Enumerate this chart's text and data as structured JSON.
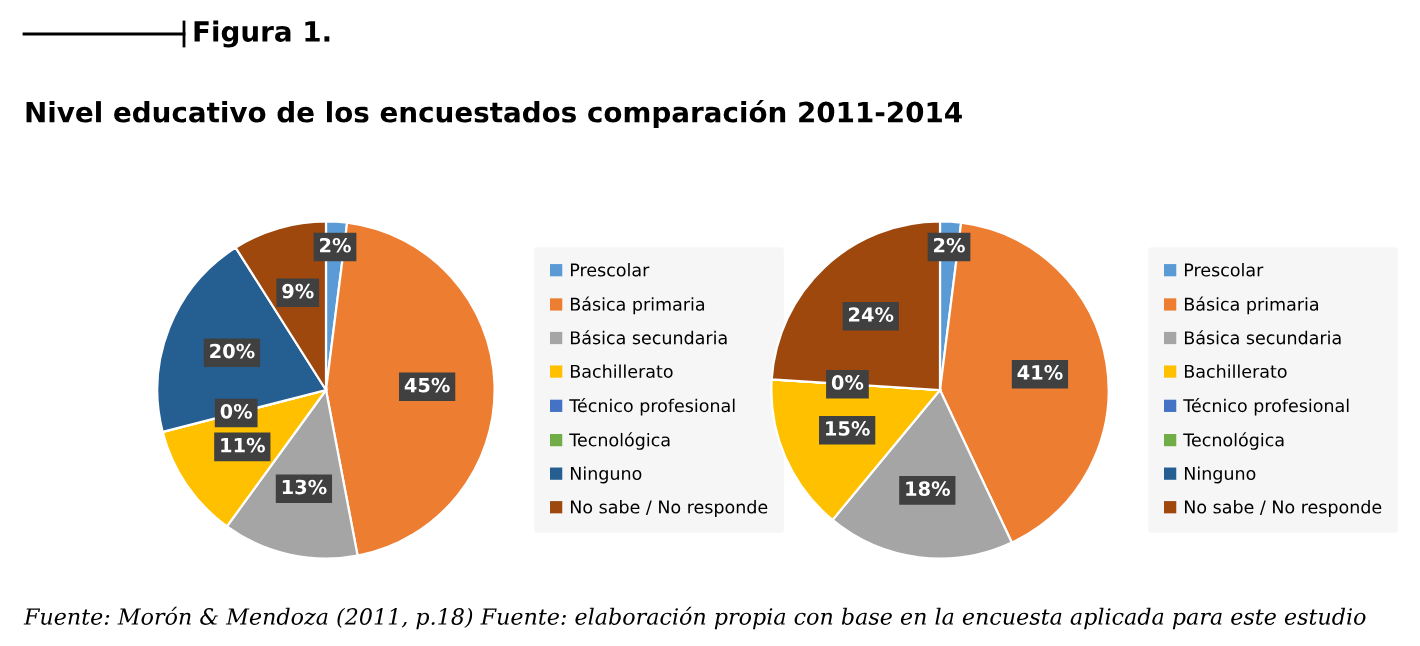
{
  "chart_data": [
    {
      "type": "pie",
      "title": "Figura 1.",
      "subtitle": "Nivel educativo de los encuestados comparación 2011-2014",
      "categories": [
        "Prescolar",
        "Básica primaria",
        "Básica secundaria",
        "Bachillerato",
        "Técnico profesional",
        "Tecnológica",
        "Ninguno",
        "No sabe / No responde"
      ],
      "values": [
        2,
        45,
        13,
        11,
        0,
        0,
        20,
        9
      ],
      "value_labels": [
        "2%",
        "45%",
        "13%",
        "11%",
        "0%",
        null,
        "20%",
        "9%"
      ],
      "colors": [
        "#5b9bd5",
        "#ed7d31",
        "#a5a5a5",
        "#ffc000",
        "#4472c4",
        "#70ad47",
        "#255e91",
        "#9e480e"
      ],
      "legend": "right"
    },
    {
      "type": "pie",
      "categories": [
        "Prescolar",
        "Básica primaria",
        "Básica secundaria",
        "Bachillerato",
        "Técnico profesional",
        "Tecnológica",
        "Ninguno",
        "No sabe / No responde"
      ],
      "values": [
        2,
        41,
        18,
        15,
        0,
        0,
        0,
        24
      ],
      "value_labels": [
        "2%",
        "41%",
        "18%",
        "15%",
        "0%",
        null,
        null,
        "24%"
      ],
      "colors": [
        "#5b9bd5",
        "#ed7d31",
        "#a5a5a5",
        "#ffc000",
        "#4472c4",
        "#70ad47",
        "#255e91",
        "#9e480e"
      ],
      "legend": "right",
      "annotations": [
        "Fuente: Morón & Mendoza (2011, p.18) Fuente: elaboración propia con base en la encuesta aplicada para este estudio"
      ]
    }
  ]
}
